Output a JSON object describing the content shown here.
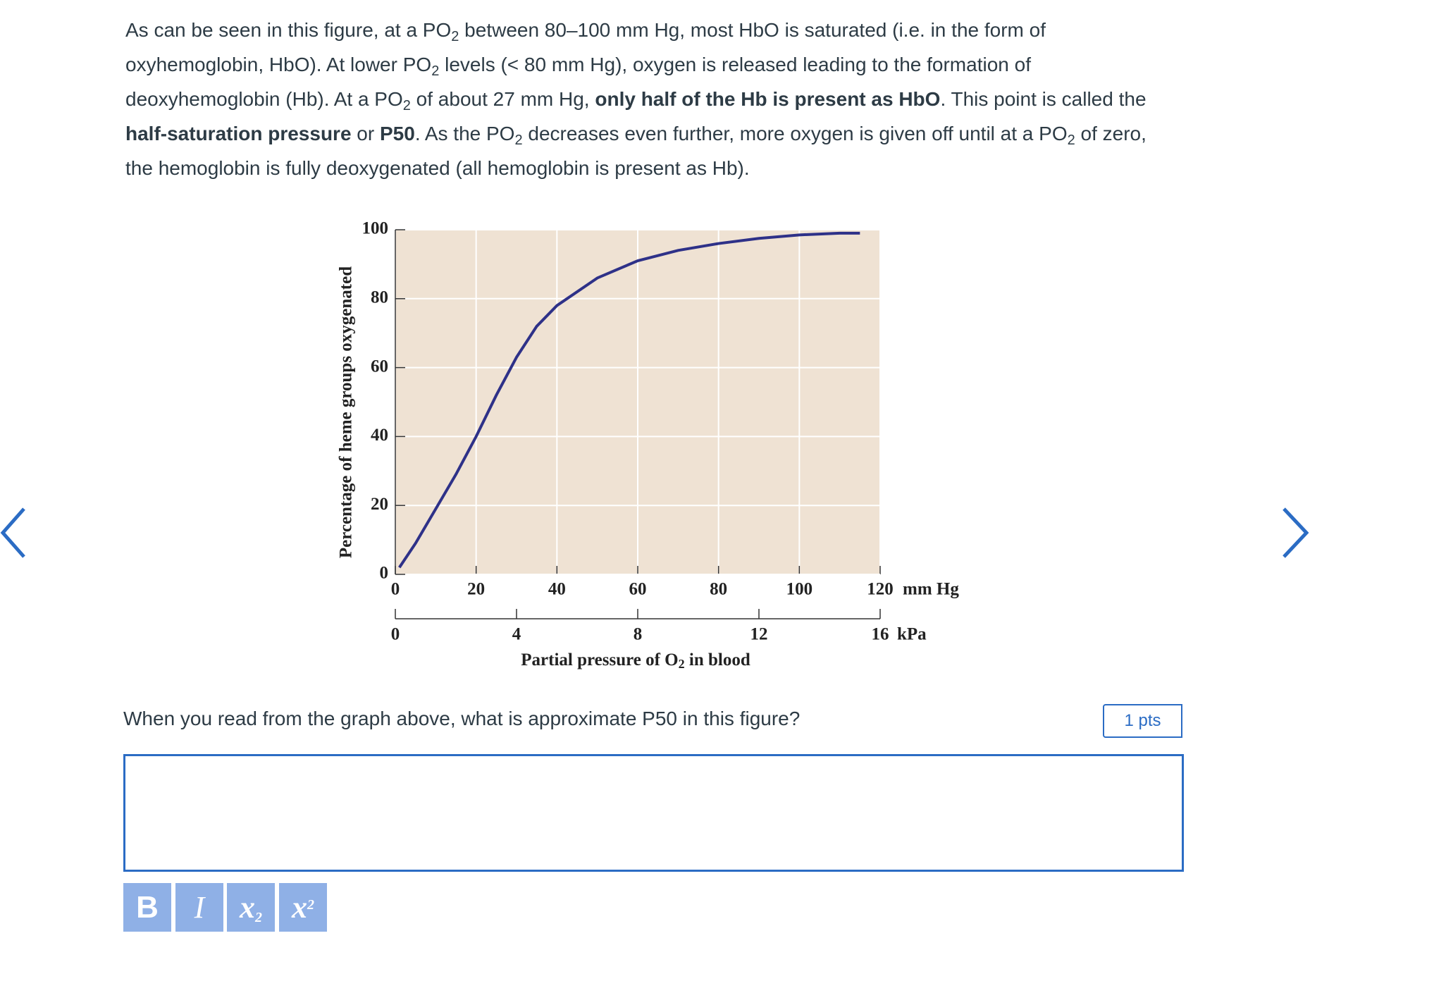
{
  "intro": [
    "As can be seen in this figure, at a PO",
    "2",
    " between 80–100 mm Hg, most HbO is saturated (i.e. in the form of oxyhemoglobin, HbO). At lower PO",
    "2",
    " levels (< 80 mm Hg), oxygen is released leading to the formation of deoxyhemoglobin (Hb). At a PO",
    "2",
    " of about 27 mm Hg, ",
    "only half of the Hb is present as HbO",
    ". This point is called the ",
    "half-saturation pressure",
    " or ",
    "P50",
    ". As the PO",
    "2",
    " decreases even further, more oxygen is given off until at a PO",
    "2",
    " of zero, the hemoglobin is fully deoxygenated (all hemoglobin is present as Hb)."
  ],
  "chart_data": {
    "type": "line",
    "ylabel": "Percentage of heme groups oxygenated",
    "xlabel": [
      "Partial pressure of O",
      "2",
      " in blood"
    ],
    "x": [
      1,
      5,
      10,
      15,
      20,
      25,
      30,
      35,
      40,
      50,
      60,
      70,
      80,
      90,
      100,
      110,
      115
    ],
    "values": [
      2,
      9,
      19,
      29,
      40,
      52,
      63,
      72,
      78,
      86,
      91,
      94,
      96,
      97.5,
      98.5,
      99,
      99
    ],
    "color": "#2e3188",
    "xlim": [
      0,
      120
    ],
    "xticks": [
      0,
      20,
      40,
      60,
      80,
      100,
      120
    ],
    "x_unit": "mm Hg",
    "x2lim": [
      0,
      16
    ],
    "x2ticks": [
      0,
      4,
      8,
      12,
      16
    ],
    "x2_unit": "kPa",
    "ylim": [
      0,
      100
    ],
    "yticks": [
      0,
      20,
      40,
      60,
      80,
      100
    ],
    "grid": true
  },
  "question": "When you read from the graph above, what is approximate P50 in this figure?",
  "points": "1 pts",
  "toolbar": [
    [
      "B"
    ],
    [
      "I"
    ],
    [
      "x",
      "2"
    ],
    [
      "x",
      "2"
    ]
  ]
}
